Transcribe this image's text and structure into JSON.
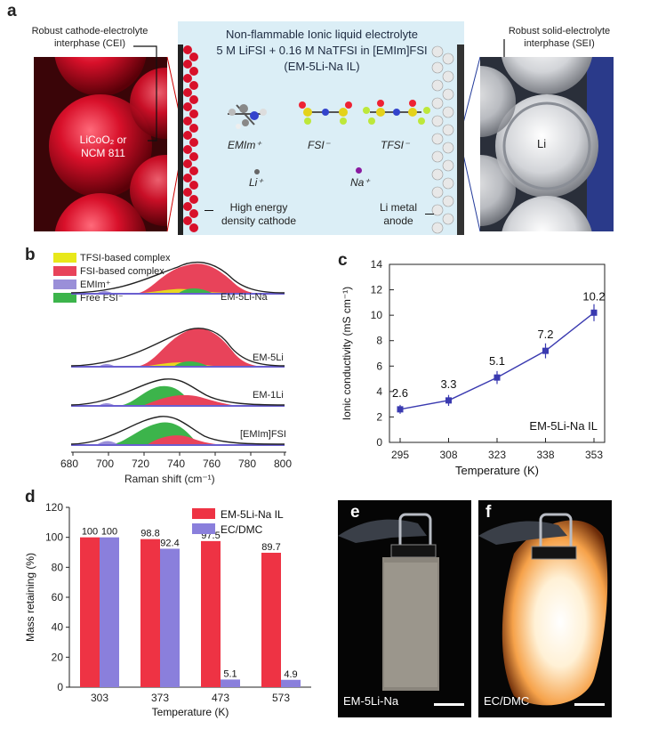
{
  "panel_a": {
    "label": "a",
    "left_title": "Robust cathode-electrolyte interphase (CEI)",
    "left_title_line1": "Robust cathode-electrolyte",
    "left_title_line2": "interphase (CEI)",
    "cathode_label_line1": "LiCoO₂ or",
    "cathode_label_line2": "NCM 811",
    "center_line1": "Non-flammable Ionic liquid electrolyte",
    "center_line2": "5 M LiFSI + 0.16 M NaTFSI in [EMIm]FSI",
    "center_line3": "(EM-5Li-Na IL)",
    "mol_emim": "EMIm⁺",
    "mol_fsi": "FSI⁻",
    "mol_tfsi": "TFSI⁻",
    "ion_li": "Li⁺",
    "ion_na": "Na⁺",
    "cathode_caption_line1": "High energy",
    "cathode_caption_line2": "density cathode",
    "anode_caption_line1": "Li metal",
    "anode_caption_line2": "anode",
    "right_title_line1": "Robust solid-electrolyte",
    "right_title_line2": "interphase (SEI)",
    "li_label": "Li"
  },
  "panel_b": {
    "label": "b",
    "legend": [
      {
        "name": "TFSI-based complex",
        "color": "#e8e81a"
      },
      {
        "name": "FSI-based complex",
        "color": "#e8435a"
      },
      {
        "name": "EMIm⁺",
        "color": "#9a8fd8"
      },
      {
        "name": "Free FSI⁻",
        "color": "#3cb44b"
      }
    ],
    "spectra": [
      "EM-5Li-Na",
      "EM-5Li",
      "EM-1Li",
      "[EMIm]FSI"
    ],
    "x_ticks": [
      "680",
      "700",
      "720",
      "740",
      "760",
      "780",
      "800"
    ],
    "xlabel": "Raman shift (cm⁻¹)"
  },
  "chart_data": [
    {
      "panel": "c",
      "type": "line",
      "x": [
        295,
        308,
        323,
        338,
        353
      ],
      "values": [
        2.6,
        3.3,
        5.1,
        7.2,
        10.2
      ],
      "value_labels": [
        "2.6",
        "3.3",
        "5.1",
        "7.2",
        "10.2"
      ],
      "x_tick_labels": [
        "295",
        "308",
        "323",
        "338",
        "353"
      ],
      "y_tick_labels": [
        "0",
        "2",
        "4",
        "6",
        "8",
        "10",
        "12",
        "14"
      ],
      "ylim": [
        0,
        14
      ],
      "xlabel": "Temperature (K)",
      "ylabel": "Ionic conductivity (mS cm⁻¹)",
      "annotation": "EM-5Li-Na IL",
      "color": "#3a3ab0"
    },
    {
      "panel": "d",
      "type": "bar",
      "categories": [
        "303",
        "373",
        "473",
        "573"
      ],
      "series": [
        {
          "name": "EM-5Li-Na IL",
          "color": "#ee3344",
          "values": [
            100,
            98.8,
            97.5,
            89.7
          ],
          "labels": [
            "100",
            "98.8",
            "97.5",
            "89.7"
          ]
        },
        {
          "name": "EC/DMC",
          "color": "#8a7fdc",
          "values": [
            100,
            92.4,
            5.1,
            4.9
          ],
          "labels": [
            "100",
            "92.4",
            "5.1",
            "4.9"
          ]
        }
      ],
      "y_tick_labels": [
        "0",
        "20",
        "40",
        "60",
        "80",
        "100",
        "120"
      ],
      "ylim": [
        0,
        120
      ],
      "xlabel": "Temperature (K)",
      "ylabel": "Mass retaining (%)"
    }
  ],
  "labels": {
    "c": "c",
    "d": "d",
    "e": "e",
    "f": "f"
  },
  "panel_e": {
    "caption": "EM-5Li-Na"
  },
  "panel_f": {
    "caption": "EC/DMC"
  }
}
